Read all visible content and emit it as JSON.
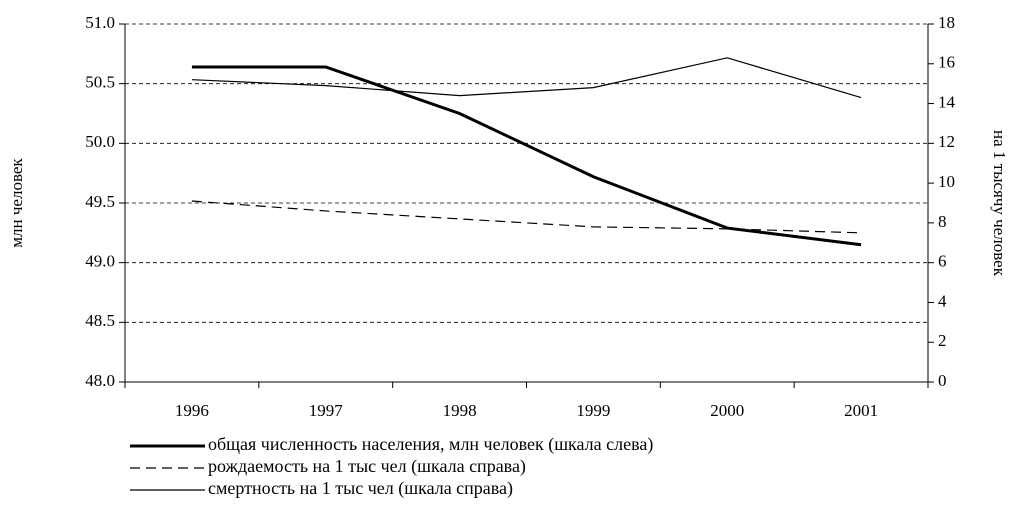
{
  "chart_data": {
    "type": "line",
    "categories": [
      "1996",
      "1997",
      "1998",
      "1999",
      "2000",
      "2001"
    ],
    "y_label": "млн человек",
    "y2_label": "на 1 тысячу человек",
    "ylim": [
      48,
      51
    ],
    "yticks": [
      {
        "value": 48,
        "label": "48.0"
      },
      48.5,
      {
        "value": 49,
        "label": "49.0"
      },
      49.5,
      {
        "value": 50,
        "label": "50.0"
      },
      50.5,
      {
        "value": 51,
        "label": "51.0"
      }
    ],
    "y2lim": [
      0,
      18
    ],
    "y2ticks": [
      0,
      2,
      4,
      6,
      8,
      10,
      12,
      14,
      16,
      18
    ],
    "grid": true,
    "legend": "bottom",
    "series": [
      {
        "name": "общая численность населения, млн человек (шкала слева)",
        "color": "#000000",
        "linestyle": "solid",
        "linewidth": 3,
        "values": [
          50.64,
          50.64,
          50.25,
          49.72,
          49.29,
          49.15
        ]
      },
      {
        "name": "рождаемость на 1 тыс чел (шкала справа)",
        "color": "#000000",
        "linestyle": "dashed",
        "linewidth": 1.2,
        "axis": "y2",
        "values": [
          9.1,
          8.6,
          8.2,
          7.8,
          7.7,
          7.5
        ]
      },
      {
        "name": "смертность на 1 тыс чел (шкала справа)",
        "color": "#000000",
        "linestyle": "solid",
        "linewidth": 1.2,
        "axis": "y2",
        "values": [
          15.2,
          14.9,
          14.4,
          14.8,
          16.3,
          14.3
        ]
      }
    ]
  }
}
